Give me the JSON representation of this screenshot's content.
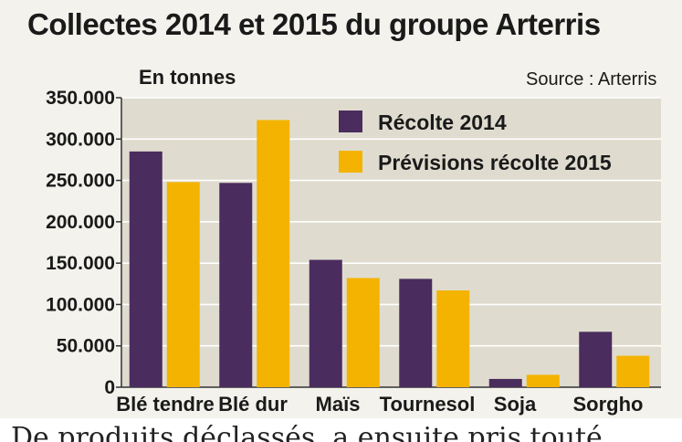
{
  "title": "Collectes 2014 et 2015 du groupe Arterris",
  "unit_label": "En tonnes",
  "source": "Source : Arterris",
  "bottom_text": "De produits déclassés, a ensuite pris touté",
  "colors": {
    "series_2014": "#4b2c5e",
    "series_2015": "#f4b300",
    "plot_bg": "#dfdccf",
    "grid": "#ffffff"
  },
  "chart_data": {
    "type": "bar",
    "categories": [
      "Blé tendre",
      "Blé dur",
      "Maïs",
      "Tournesol",
      "Soja",
      "Sorgho"
    ],
    "series": [
      {
        "name": "Récolte 2014",
        "values": [
          285000,
          247000,
          154000,
          131000,
          10000,
          67000
        ]
      },
      {
        "name": "Prévisions récolte 2015",
        "values": [
          248000,
          323000,
          132000,
          117000,
          15000,
          38000
        ]
      }
    ],
    "ylim": [
      0,
      350000
    ],
    "yticks": [
      "0",
      "50.000",
      "100.000",
      "150.000",
      "200.000",
      "250.000",
      "300.000",
      "350.000"
    ],
    "grid": true,
    "legend_position": "top-right"
  }
}
